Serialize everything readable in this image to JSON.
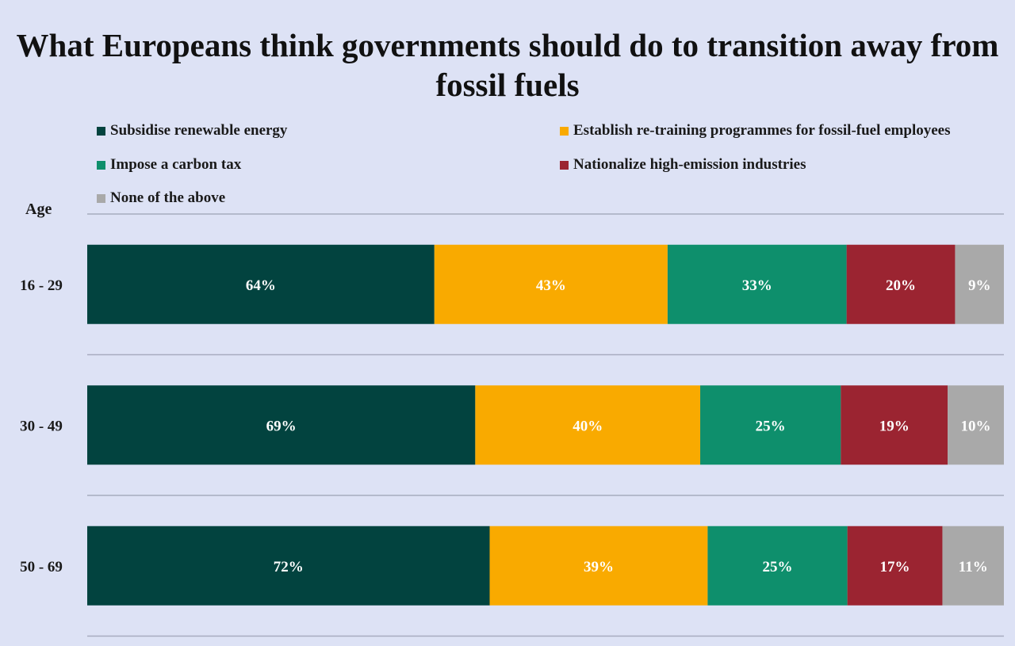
{
  "chart_data": {
    "type": "bar",
    "orientation": "horizontal",
    "stacked": true,
    "title": "What Europeans think governments should do to transition away from fossil fuels",
    "ylabel": "Age",
    "categories": [
      "16 - 29",
      "30 - 49",
      "50 - 69"
    ],
    "series": [
      {
        "name": "Subsidise renewable energy",
        "color": "#02433f",
        "values": [
          64,
          69,
          72
        ],
        "labels": [
          "64%",
          "69%",
          "72%"
        ]
      },
      {
        "name": "Establish re-training programmes for fossil-fuel employees",
        "color": "#f9aa00",
        "values": [
          43,
          40,
          39
        ],
        "labels": [
          "43%",
          "40%",
          "39%"
        ]
      },
      {
        "name": "Impose a carbon tax",
        "color": "#0e8f6c",
        "values": [
          33,
          25,
          25
        ],
        "labels": [
          "33%",
          "25%",
          "25%"
        ]
      },
      {
        "name": "Nationalize high-emission industries",
        "color": "#9b2431",
        "values": [
          20,
          19,
          17
        ],
        "labels": [
          "20%",
          "19%",
          "17%"
        ]
      },
      {
        "name": "None of the above",
        "color": "#a9a9a9",
        "values": [
          9,
          10,
          11
        ],
        "labels": [
          "9%",
          "10%",
          "11%"
        ]
      }
    ],
    "legend_position": "top",
    "grid": true
  }
}
